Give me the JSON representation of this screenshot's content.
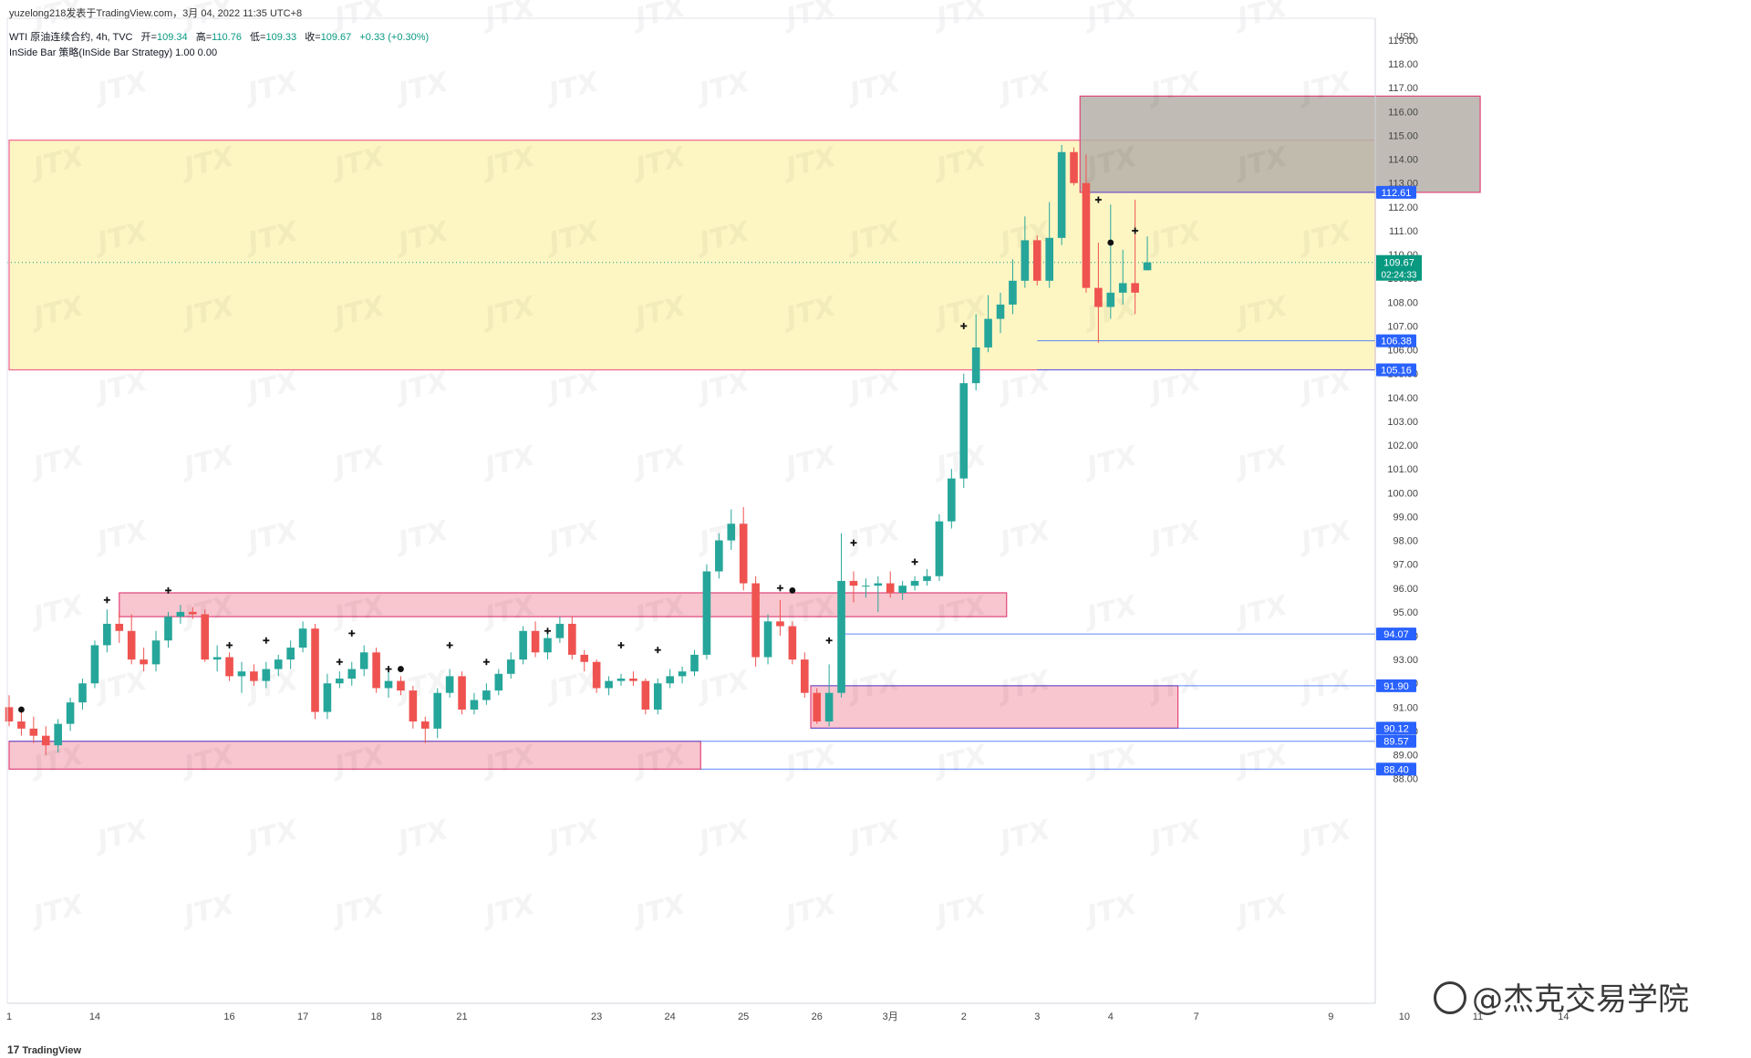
{
  "header": {
    "publisher": "yuzelong218发表于TradingView.com，3月 04, 2022 11:35 UTC+8",
    "symbol": "WTI 原油连续合约, 4h, TVC",
    "open_label": "开=",
    "open": "109.34",
    "high_label": "高=",
    "high": "110.76",
    "low_label": "低=",
    "low": "109.33",
    "close_label": "收=",
    "close": "109.67",
    "change": "+0.33 (+0.30%)",
    "indicator": "InSide Bar 策略(InSide Bar Strategy)  1.00  0.00"
  },
  "footer": {
    "logo": "TradingView",
    "logo_mark": "17"
  },
  "watermark": {
    "text": "@杰克交易学院"
  },
  "colors": {
    "up": "#26a69a",
    "down": "#ef5350",
    "price_box": "#089981",
    "level_label": "#2962ff",
    "zone_yellow": "#fdf6c3",
    "zone_pink": "#f8c6cf",
    "zone_gray": "#b5b0a8"
  },
  "chart_data": {
    "type": "candlestick",
    "currency": "USD",
    "y_ticks": [
      88,
      89,
      90,
      91,
      92,
      93,
      94,
      95,
      96,
      97,
      98,
      99,
      100,
      101,
      102,
      103,
      104,
      105,
      106,
      107,
      108,
      109,
      110,
      111,
      112,
      113,
      114,
      115,
      116,
      117,
      118,
      119
    ],
    "ylim": [
      87.2,
      119.7
    ],
    "x_ticks": [
      {
        "label": "1",
        "i": 0
      },
      {
        "label": "14",
        "i": 7
      },
      {
        "label": "16",
        "i": 18
      },
      {
        "label": "17",
        "i": 24
      },
      {
        "label": "18",
        "i": 30
      },
      {
        "label": "21",
        "i": 37
      },
      {
        "label": "23",
        "i": 48
      },
      {
        "label": "24",
        "i": 54
      },
      {
        "label": "25",
        "i": 60
      },
      {
        "label": "26",
        "i": 66
      },
      {
        "label": "3月",
        "i": 72
      },
      {
        "label": "2",
        "i": 78
      },
      {
        "label": "3",
        "i": 84
      },
      {
        "label": "4",
        "i": 90
      },
      {
        "label": "7",
        "i": 97
      },
      {
        "label": "9",
        "i": 108
      },
      {
        "label": "10",
        "i": 114
      },
      {
        "label": "11",
        "i": 120
      },
      {
        "label": "14",
        "i": 127
      }
    ],
    "current_price": "109.67",
    "countdown": "02:24:33",
    "price_levels": [
      "112.61",
      "106.38",
      "105.16",
      "94.07",
      "91.90",
      "90.12",
      "89.57",
      "88.40"
    ],
    "candles": [
      [
        91.0,
        91.5,
        90.2,
        90.4
      ],
      [
        90.4,
        90.8,
        89.8,
        90.1
      ],
      [
        90.1,
        90.6,
        89.5,
        89.8
      ],
      [
        89.8,
        90.2,
        89.0,
        89.4
      ],
      [
        89.4,
        90.5,
        89.1,
        90.3
      ],
      [
        90.3,
        91.4,
        90.0,
        91.2
      ],
      [
        91.2,
        92.2,
        90.9,
        92.0
      ],
      [
        92.0,
        93.8,
        91.8,
        93.6
      ],
      [
        93.6,
        95.1,
        93.3,
        94.5
      ],
      [
        94.5,
        95.0,
        93.7,
        94.2
      ],
      [
        94.2,
        94.9,
        92.8,
        93.0
      ],
      [
        93.0,
        93.5,
        92.5,
        92.8
      ],
      [
        92.8,
        94.2,
        92.5,
        93.8
      ],
      [
        93.8,
        95.0,
        93.5,
        94.8
      ],
      [
        94.8,
        95.3,
        94.5,
        95.0
      ],
      [
        95.0,
        95.2,
        94.7,
        94.9
      ],
      [
        94.9,
        95.1,
        92.9,
        93.0
      ],
      [
        93.0,
        93.6,
        92.5,
        93.1
      ],
      [
        93.1,
        93.3,
        92.1,
        92.3
      ],
      [
        92.3,
        92.9,
        91.6,
        92.5
      ],
      [
        92.5,
        92.8,
        91.9,
        92.1
      ],
      [
        92.1,
        92.9,
        91.8,
        92.6
      ],
      [
        92.6,
        93.2,
        92.3,
        93.0
      ],
      [
        93.0,
        93.8,
        92.6,
        93.5
      ],
      [
        93.5,
        94.6,
        93.3,
        94.3
      ],
      [
        94.3,
        94.5,
        90.5,
        90.8
      ],
      [
        90.8,
        92.4,
        90.5,
        92.0
      ],
      [
        92.0,
        92.5,
        91.8,
        92.2
      ],
      [
        92.2,
        92.9,
        91.9,
        92.6
      ],
      [
        92.6,
        93.6,
        92.3,
        93.3
      ],
      [
        93.3,
        93.5,
        91.6,
        91.8
      ],
      [
        91.8,
        92.5,
        91.4,
        92.1
      ],
      [
        92.1,
        92.3,
        91.5,
        91.7
      ],
      [
        91.7,
        91.9,
        90.1,
        90.4
      ],
      [
        90.4,
        90.6,
        89.5,
        90.1
      ],
      [
        90.1,
        91.8,
        89.7,
        91.6
      ],
      [
        91.6,
        92.6,
        91.4,
        92.3
      ],
      [
        92.3,
        92.5,
        90.7,
        90.9
      ],
      [
        90.9,
        91.6,
        90.7,
        91.3
      ],
      [
        91.3,
        92.0,
        91.1,
        91.7
      ],
      [
        91.7,
        92.6,
        91.5,
        92.4
      ],
      [
        92.4,
        93.3,
        92.2,
        93.0
      ],
      [
        93.0,
        94.4,
        92.8,
        94.2
      ],
      [
        94.2,
        94.6,
        93.1,
        93.3
      ],
      [
        93.3,
        94.1,
        93.0,
        93.9
      ],
      [
        93.9,
        94.8,
        93.7,
        94.5
      ],
      [
        94.5,
        94.8,
        93.0,
        93.2
      ],
      [
        93.2,
        93.4,
        92.5,
        92.9
      ],
      [
        92.9,
        93.0,
        91.6,
        91.8
      ],
      [
        91.8,
        92.3,
        91.5,
        92.1
      ],
      [
        92.1,
        92.4,
        91.9,
        92.2
      ],
      [
        92.2,
        92.5,
        91.9,
        92.1
      ],
      [
        92.1,
        92.2,
        90.7,
        90.9
      ],
      [
        90.9,
        92.2,
        90.7,
        92.0
      ],
      [
        92.0,
        92.6,
        91.8,
        92.3
      ],
      [
        92.3,
        92.7,
        92.0,
        92.5
      ],
      [
        92.5,
        93.4,
        92.3,
        93.2
      ],
      [
        93.2,
        97.0,
        93.0,
        96.7
      ],
      [
        96.7,
        98.3,
        96.4,
        98.0
      ],
      [
        98.0,
        99.3,
        97.6,
        98.7
      ],
      [
        98.7,
        99.4,
        95.9,
        96.2
      ],
      [
        96.2,
        96.5,
        92.7,
        93.1
      ],
      [
        93.1,
        94.9,
        92.8,
        94.6
      ],
      [
        94.6,
        95.5,
        94.0,
        94.4
      ],
      [
        94.4,
        94.6,
        92.8,
        93.0
      ],
      [
        93.0,
        93.3,
        91.4,
        91.6
      ],
      [
        91.6,
        91.8,
        90.3,
        90.4
      ],
      [
        90.4,
        92.8,
        90.2,
        91.6
      ],
      [
        91.6,
        98.3,
        91.4,
        96.3
      ],
      [
        96.3,
        96.7,
        95.4,
        96.1
      ],
      [
        96.1,
        96.4,
        95.6,
        96.1
      ],
      [
        96.1,
        96.5,
        95.0,
        96.2
      ],
      [
        96.2,
        96.7,
        95.6,
        95.8
      ],
      [
        95.8,
        96.3,
        95.5,
        96.1
      ],
      [
        96.1,
        96.5,
        95.9,
        96.3
      ],
      [
        96.3,
        96.8,
        96.1,
        96.5
      ],
      [
        96.5,
        99.1,
        96.3,
        98.8
      ],
      [
        98.8,
        101.0,
        98.5,
        100.6
      ],
      [
        100.6,
        105.0,
        100.2,
        104.6
      ],
      [
        104.6,
        107.5,
        104.3,
        106.1
      ],
      [
        106.1,
        108.3,
        105.9,
        107.3
      ],
      [
        107.3,
        108.4,
        106.7,
        107.9
      ],
      [
        107.9,
        109.8,
        107.5,
        108.9
      ],
      [
        108.9,
        111.6,
        108.6,
        110.6
      ],
      [
        110.6,
        110.8,
        108.7,
        108.9
      ],
      [
        108.9,
        112.2,
        108.6,
        110.7
      ],
      [
        110.7,
        114.6,
        110.4,
        114.3
      ],
      [
        114.3,
        114.5,
        112.9,
        113.0
      ],
      [
        113.0,
        114.2,
        108.4,
        108.6
      ],
      [
        108.6,
        110.5,
        106.3,
        107.8
      ],
      [
        107.8,
        112.1,
        107.3,
        108.4
      ],
      [
        108.4,
        110.2,
        107.9,
        108.8
      ],
      [
        108.8,
        112.3,
        107.5,
        108.4
      ],
      [
        109.34,
        110.76,
        109.33,
        109.67
      ]
    ],
    "markers": [
      {
        "i": 1,
        "type": "dot",
        "y": 90.9
      },
      {
        "i": 8,
        "type": "plus",
        "y": 95.5
      },
      {
        "i": 13,
        "type": "plus",
        "y": 95.9
      },
      {
        "i": 18,
        "type": "plus",
        "y": 93.6
      },
      {
        "i": 21,
        "type": "plus",
        "y": 93.8
      },
      {
        "i": 27,
        "type": "plus",
        "y": 92.9
      },
      {
        "i": 28,
        "type": "plus",
        "y": 94.1
      },
      {
        "i": 31,
        "type": "plus",
        "y": 92.6
      },
      {
        "i": 32,
        "type": "dot",
        "y": 92.6
      },
      {
        "i": 36,
        "type": "plus",
        "y": 93.6
      },
      {
        "i": 39,
        "type": "plus",
        "y": 92.9
      },
      {
        "i": 44,
        "type": "plus",
        "y": 94.2
      },
      {
        "i": 50,
        "type": "plus",
        "y": 93.6
      },
      {
        "i": 53,
        "type": "plus",
        "y": 93.4
      },
      {
        "i": 63,
        "type": "plus",
        "y": 96.0
      },
      {
        "i": 64,
        "type": "dot",
        "y": 95.9
      },
      {
        "i": 67,
        "type": "plus",
        "y": 93.8
      },
      {
        "i": 69,
        "type": "plus",
        "y": 97.9
      },
      {
        "i": 74,
        "type": "plus",
        "y": 97.1
      },
      {
        "i": 78,
        "type": "plus",
        "y": 107.0
      },
      {
        "i": 89,
        "type": "plus",
        "y": 112.3
      },
      {
        "i": 90,
        "type": "dot",
        "y": 110.5
      },
      {
        "i": 92,
        "type": "plus",
        "y": 111.0
      }
    ],
    "zones": [
      {
        "type": "yellow",
        "top": 114.8,
        "bottom": 105.16,
        "from": 0,
        "to": "end"
      },
      {
        "type": "gray",
        "top": 116.65,
        "bottom": 112.61,
        "from": 87.5,
        "to": 120.2
      },
      {
        "type": "pink",
        "top": 95.8,
        "bottom": 94.8,
        "from": 9,
        "to": 81.5
      },
      {
        "type": "pink",
        "top": 91.9,
        "bottom": 90.12,
        "from": 65.5,
        "to": 95.5
      },
      {
        "type": "pink",
        "top": 89.57,
        "bottom": 88.4,
        "from": 0,
        "to": 56.5
      }
    ],
    "level_lines": [
      {
        "value": 112.61,
        "from": 88
      },
      {
        "value": 106.38,
        "from": 84
      },
      {
        "value": 105.16,
        "from": 84
      },
      {
        "value": 94.07,
        "from": 68
      },
      {
        "value": 91.9,
        "from": 65.5
      },
      {
        "value": 90.12,
        "from": 65.5
      },
      {
        "value": 89.57,
        "from": 0
      },
      {
        "value": 88.4,
        "from": 56.5
      }
    ],
    "gridlines": false,
    "xlabel": "",
    "ylabel": ""
  }
}
